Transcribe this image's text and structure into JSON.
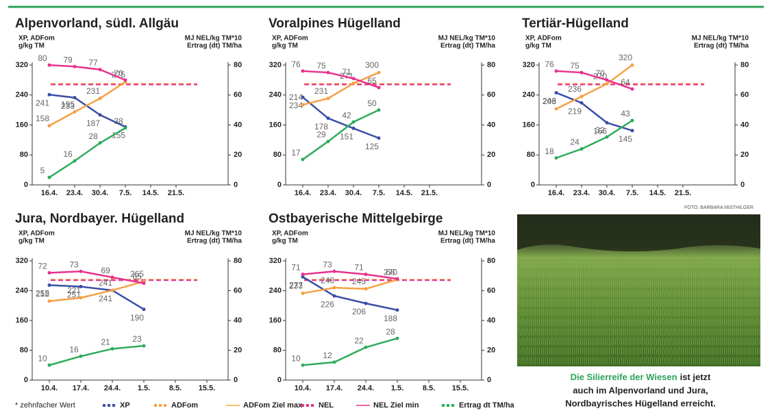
{
  "legend": {
    "note": "* zehnfacher Wert",
    "items": [
      {
        "name": "XP",
        "color": "#3b4ea6",
        "style": "dotted"
      },
      {
        "name": "ADFom",
        "color": "#f6a043",
        "style": "dotted"
      },
      {
        "name": "ADFom Ziel max",
        "color": "#f6a043",
        "style": "thin"
      },
      {
        "name": "NEL",
        "color": "#e6318c",
        "style": "dotted"
      },
      {
        "name": "NEL Ziel min",
        "color": "#e6318c",
        "style": "thin"
      },
      {
        "name": "Ertrag dt TM/ha",
        "color": "#2fab5c",
        "style": "dotted"
      }
    ]
  },
  "chart_data": [
    {
      "type": "line",
      "title": "Alpenvorland, südl. Allgäu",
      "y_label": [
        "XP, ADFom",
        "g/kg TM"
      ],
      "y2_label": [
        "MJ NEL/kg TM*10",
        "Ertrag (dt) TM/ha"
      ],
      "categories": [
        "16.4.",
        "23.4.",
        "30.4.",
        "7.5.",
        "14.5.",
        "21.5."
      ],
      "ylim": [
        0,
        320
      ],
      "yticks": [
        0,
        80,
        160,
        240,
        320
      ],
      "y2lim": [
        0,
        80
      ],
      "y2ticks": [
        0,
        20,
        40,
        60,
        80
      ],
      "series": [
        {
          "color": "#3b4ea6",
          "values": [
            241,
            233,
            187,
            155,
            null,
            null
          ]
        },
        {
          "color": "#f6a043",
          "values": [
            158,
            195,
            231,
            275,
            null,
            null
          ]
        },
        {
          "color": "#e6318c",
          "axis": "y2",
          "values": [
            80,
            79,
            77,
            70,
            null,
            null
          ]
        },
        {
          "color": "#2fab5c",
          "axis": "y2",
          "values": [
            5,
            16,
            28,
            38,
            null,
            null
          ]
        }
      ],
      "ref_lines": [
        {
          "color": "#f6a043",
          "value": 270
        },
        {
          "color": "#e6318c",
          "axis": "y2",
          "value": 67
        }
      ]
    },
    {
      "type": "line",
      "title": "Voralpines Hügelland",
      "y_label": [
        "XP, ADFom",
        "g/kg TM"
      ],
      "y2_label": [
        "MJ NEL/kg TM*10",
        "Ertrag (dt) TM/ha"
      ],
      "categories": [
        "16.4.",
        "23.4.",
        "30.4.",
        "7.5.",
        "14.5.",
        "21.5."
      ],
      "ylim": [
        0,
        320
      ],
      "yticks": [
        0,
        80,
        160,
        240,
        320
      ],
      "y2lim": [
        0,
        80
      ],
      "y2ticks": [
        0,
        20,
        40,
        60,
        80
      ],
      "series": [
        {
          "color": "#3b4ea6",
          "values": [
            234,
            178,
            151,
            125,
            null,
            null
          ]
        },
        {
          "color": "#f6a043",
          "values": [
            214,
            231,
            271,
            300,
            null,
            null
          ]
        },
        {
          "color": "#e6318c",
          "axis": "y2",
          "values": [
            76,
            75,
            71,
            65,
            null,
            null
          ]
        },
        {
          "color": "#2fab5c",
          "axis": "y2",
          "values": [
            17,
            29,
            42,
            50,
            null,
            null
          ]
        }
      ],
      "ref_lines": [
        {
          "color": "#f6a043",
          "value": 270
        },
        {
          "color": "#e6318c",
          "axis": "y2",
          "value": 67
        }
      ]
    },
    {
      "type": "line",
      "title": "Tertiär-Hügelland",
      "y_label": [
        "XP, ADFom",
        "g/kg TM"
      ],
      "y2_label": [
        "MJ NEL/kg TM*10",
        "Ertrag (dt) TM/ha"
      ],
      "categories": [
        "16.4.",
        "23.4.",
        "30.4.",
        "7.5.",
        "14.5.",
        "21.5."
      ],
      "ylim": [
        0,
        320
      ],
      "yticks": [
        0,
        80,
        160,
        240,
        320
      ],
      "y2lim": [
        0,
        80
      ],
      "y2ticks": [
        0,
        20,
        40,
        60,
        80
      ],
      "series": [
        {
          "color": "#3b4ea6",
          "values": [
            246,
            219,
            166,
            145,
            null,
            null
          ]
        },
        {
          "color": "#f6a043",
          "values": [
            203,
            236,
            270,
            320,
            null,
            null
          ]
        },
        {
          "color": "#e6318c",
          "axis": "y2",
          "values": [
            76,
            75,
            70,
            64,
            null,
            null
          ]
        },
        {
          "color": "#2fab5c",
          "axis": "y2",
          "values": [
            18,
            24,
            32,
            43,
            null,
            null
          ]
        }
      ],
      "ref_lines": [
        {
          "color": "#f6a043",
          "value": 270
        },
        {
          "color": "#e6318c",
          "axis": "y2",
          "value": 67
        }
      ]
    },
    {
      "type": "line",
      "title": "Jura, Nordbayer. Hügelland",
      "y_label": [
        "XP, ADFom",
        "g/kg TM"
      ],
      "y2_label": [
        "MJ NEL/kg TM*10",
        "Ertrag (dt) TM/ha"
      ],
      "categories": [
        "10.4.",
        "17.4.",
        "24.4.",
        "1.5.",
        "8.5.",
        "15.5."
      ],
      "ylim": [
        0,
        320
      ],
      "yticks": [
        0,
        80,
        160,
        240,
        320
      ],
      "y2lim": [
        0,
        80
      ],
      "y2ticks": [
        0,
        20,
        40,
        60,
        80
      ],
      "series": [
        {
          "color": "#3b4ea6",
          "values": [
            255,
            251,
            241,
            190,
            null,
            null
          ]
        },
        {
          "color": "#f6a043",
          "values": [
            212,
            221,
            241,
            265,
            null,
            null
          ]
        },
        {
          "color": "#e6318c",
          "axis": "y2",
          "values": [
            72,
            73,
            69,
            65,
            null,
            null
          ]
        },
        {
          "color": "#2fab5c",
          "axis": "y2",
          "values": [
            10,
            16,
            21,
            23,
            null,
            null
          ]
        }
      ],
      "ref_lines": [
        {
          "color": "#f6a043",
          "value": 270
        },
        {
          "color": "#e6318c",
          "axis": "y2",
          "value": 67
        }
      ]
    },
    {
      "type": "line",
      "title": "Ostbayerische Mittelgebirge",
      "y_label": [
        "XP, ADFom",
        "g/kg TM"
      ],
      "y2_label": [
        "MJ NEL/kg TM*10",
        "Ertrag (dt) TM/ha"
      ],
      "categories": [
        "10.4.",
        "17.4.",
        "24.4.",
        "1.5.",
        "8.5.",
        "15.5."
      ],
      "ylim": [
        0,
        320
      ],
      "yticks": [
        0,
        80,
        160,
        240,
        320
      ],
      "y2lim": [
        0,
        80
      ],
      "y2ticks": [
        0,
        20,
        40,
        60,
        80
      ],
      "series": [
        {
          "color": "#3b4ea6",
          "values": [
            277,
            226,
            206,
            188,
            null,
            null
          ]
        },
        {
          "color": "#f6a043",
          "values": [
            233,
            248,
            245,
            270,
            null,
            null
          ]
        },
        {
          "color": "#e6318c",
          "axis": "y2",
          "values": [
            71,
            73,
            71,
            68,
            null,
            null
          ]
        },
        {
          "color": "#2fab5c",
          "axis": "y2",
          "values": [
            10,
            12,
            22,
            28,
            null,
            null
          ]
        }
      ],
      "ref_lines": [
        {
          "color": "#f6a043",
          "value": 270
        },
        {
          "color": "#e6318c",
          "axis": "y2",
          "value": 67
        }
      ]
    }
  ],
  "photo": {
    "credit": "FOTO: BARBARA MISTHILGER",
    "caption": {
      "highlight": "Die Silierreife der Wiesen",
      "lines": [
        "ist jetzt",
        "auch im Alpenvorland und Jura,",
        "Nordbayrisches Hügelland erreicht."
      ]
    }
  }
}
